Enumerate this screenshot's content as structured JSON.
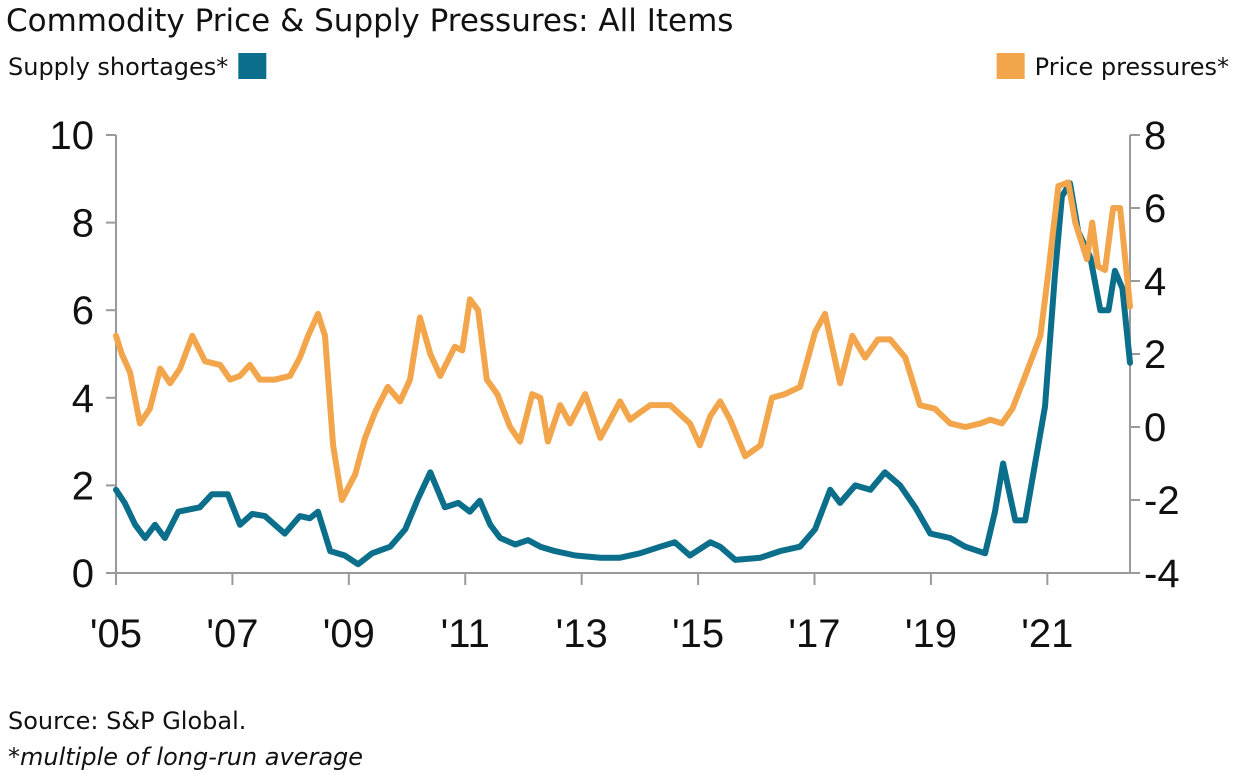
{
  "chart_data": {
    "type": "line",
    "title": "Commodity Price & Supply Pressures: All Items",
    "source": "Source: S&P Global.",
    "footnote": "*multiple of long-run average",
    "xlim": [
      2005,
      2022.42
    ],
    "xticks": [
      {
        "value": 2005,
        "label": "'05"
      },
      {
        "value": 2007,
        "label": "'07"
      },
      {
        "value": 2009,
        "label": "'09"
      },
      {
        "value": 2011,
        "label": "'11"
      },
      {
        "value": 2013,
        "label": "'13"
      },
      {
        "value": 2015,
        "label": "'15"
      },
      {
        "value": 2017,
        "label": "'17"
      },
      {
        "value": 2019,
        "label": "'19"
      },
      {
        "value": 2021,
        "label": "'21"
      }
    ],
    "ylim": [
      0,
      10
    ],
    "yticks": [
      0,
      2,
      4,
      6,
      8,
      10
    ],
    "y2lim": [
      -4,
      8
    ],
    "y2ticks": [
      -4,
      -2,
      0,
      2,
      4,
      6,
      8
    ],
    "series": [
      {
        "name": "Supply shortages*",
        "color": "#0b6e8a",
        "axis": "y",
        "x": [
          2005.0,
          2005.15,
          2005.33,
          2005.5,
          2005.67,
          2005.84,
          2006.07,
          2006.44,
          2006.65,
          2006.92,
          2007.13,
          2007.34,
          2007.56,
          2007.9,
          2008.16,
          2008.33,
          2008.47,
          2008.68,
          2008.93,
          2009.16,
          2009.4,
          2009.71,
          2009.97,
          2010.19,
          2010.4,
          2010.65,
          2010.88,
          2011.08,
          2011.25,
          2011.43,
          2011.6,
          2011.86,
          2012.08,
          2012.29,
          2012.54,
          2012.89,
          2013.32,
          2013.66,
          2014.0,
          2014.35,
          2014.6,
          2014.86,
          2015.21,
          2015.38,
          2015.64,
          2016.07,
          2016.41,
          2016.75,
          2017.01,
          2017.27,
          2017.44,
          2017.7,
          2017.96,
          2018.21,
          2018.47,
          2018.73,
          2018.99,
          2019.33,
          2019.59,
          2019.93,
          2020.1,
          2020.24,
          2020.45,
          2020.62,
          2020.79,
          2020.96,
          2021.13,
          2021.25,
          2021.39,
          2021.53,
          2021.74,
          2021.91,
          2022.05,
          2022.16,
          2022.29,
          2022.42
        ],
        "values": [
          1.9,
          1.6,
          1.1,
          0.8,
          1.1,
          0.8,
          1.4,
          1.5,
          1.8,
          1.8,
          1.1,
          1.35,
          1.3,
          0.9,
          1.3,
          1.25,
          1.4,
          0.5,
          0.4,
          0.2,
          0.45,
          0.6,
          1.0,
          1.7,
          2.3,
          1.5,
          1.6,
          1.4,
          1.65,
          1.1,
          0.8,
          0.65,
          0.75,
          0.6,
          0.5,
          0.4,
          0.35,
          0.35,
          0.45,
          0.6,
          0.7,
          0.4,
          0.7,
          0.6,
          0.3,
          0.35,
          0.5,
          0.6,
          1.0,
          1.9,
          1.6,
          2.0,
          1.9,
          2.3,
          2.0,
          1.5,
          0.9,
          0.8,
          0.6,
          0.45,
          1.4,
          2.5,
          1.2,
          1.2,
          2.5,
          3.8,
          6.8,
          8.6,
          8.9,
          7.8,
          7.2,
          6.0,
          6.0,
          6.9,
          6.5,
          4.8
        ]
      },
      {
        "name": "Price pressures*",
        "color": "#f2a54a",
        "axis": "y2",
        "x": [
          2005.0,
          2005.1,
          2005.24,
          2005.41,
          2005.58,
          2005.76,
          2005.93,
          2006.1,
          2006.31,
          2006.53,
          2006.79,
          2006.96,
          2007.13,
          2007.3,
          2007.47,
          2007.73,
          2007.99,
          2008.16,
          2008.3,
          2008.47,
          2008.59,
          2008.73,
          2008.88,
          2009.11,
          2009.28,
          2009.45,
          2009.67,
          2009.88,
          2010.05,
          2010.22,
          2010.4,
          2010.57,
          2010.82,
          2010.95,
          2011.08,
          2011.22,
          2011.37,
          2011.55,
          2011.77,
          2011.94,
          2012.15,
          2012.29,
          2012.42,
          2012.63,
          2012.8,
          2013.06,
          2013.32,
          2013.66,
          2013.83,
          2014.18,
          2014.52,
          2014.86,
          2015.03,
          2015.21,
          2015.38,
          2015.55,
          2015.81,
          2016.07,
          2016.27,
          2016.49,
          2016.75,
          2017.01,
          2017.18,
          2017.44,
          2017.65,
          2017.87,
          2018.09,
          2018.3,
          2018.56,
          2018.81,
          2019.07,
          2019.33,
          2019.59,
          2019.85,
          2020.02,
          2020.22,
          2020.4,
          2020.62,
          2020.88,
          2021.0,
          2021.19,
          2021.36,
          2021.48,
          2021.68,
          2021.77,
          2021.87,
          2021.99,
          2022.13,
          2022.25,
          2022.42
        ],
        "values": [
          2.5,
          2.0,
          1.5,
          0.1,
          0.5,
          1.6,
          1.2,
          1.6,
          2.5,
          1.8,
          1.7,
          1.3,
          1.4,
          1.7,
          1.3,
          1.3,
          1.4,
          1.9,
          2.5,
          3.1,
          2.5,
          -0.5,
          -2.0,
          -1.3,
          -0.3,
          0.4,
          1.1,
          0.7,
          1.3,
          3.0,
          2.0,
          1.4,
          2.2,
          2.1,
          3.5,
          3.2,
          1.3,
          0.9,
          0.0,
          -0.4,
          0.9,
          0.8,
          -0.4,
          0.6,
          0.1,
          0.9,
          -0.3,
          0.7,
          0.2,
          0.6,
          0.6,
          0.1,
          -0.5,
          0.3,
          0.7,
          0.2,
          -0.8,
          -0.5,
          0.8,
          0.9,
          1.1,
          2.6,
          3.1,
          1.2,
          2.5,
          1.9,
          2.4,
          2.4,
          1.9,
          0.6,
          0.5,
          0.1,
          0.0,
          0.1,
          0.2,
          0.1,
          0.5,
          1.4,
          2.5,
          4.0,
          6.6,
          6.7,
          5.6,
          4.6,
          5.6,
          4.4,
          4.3,
          6.0,
          6.0,
          3.3
        ]
      }
    ]
  }
}
